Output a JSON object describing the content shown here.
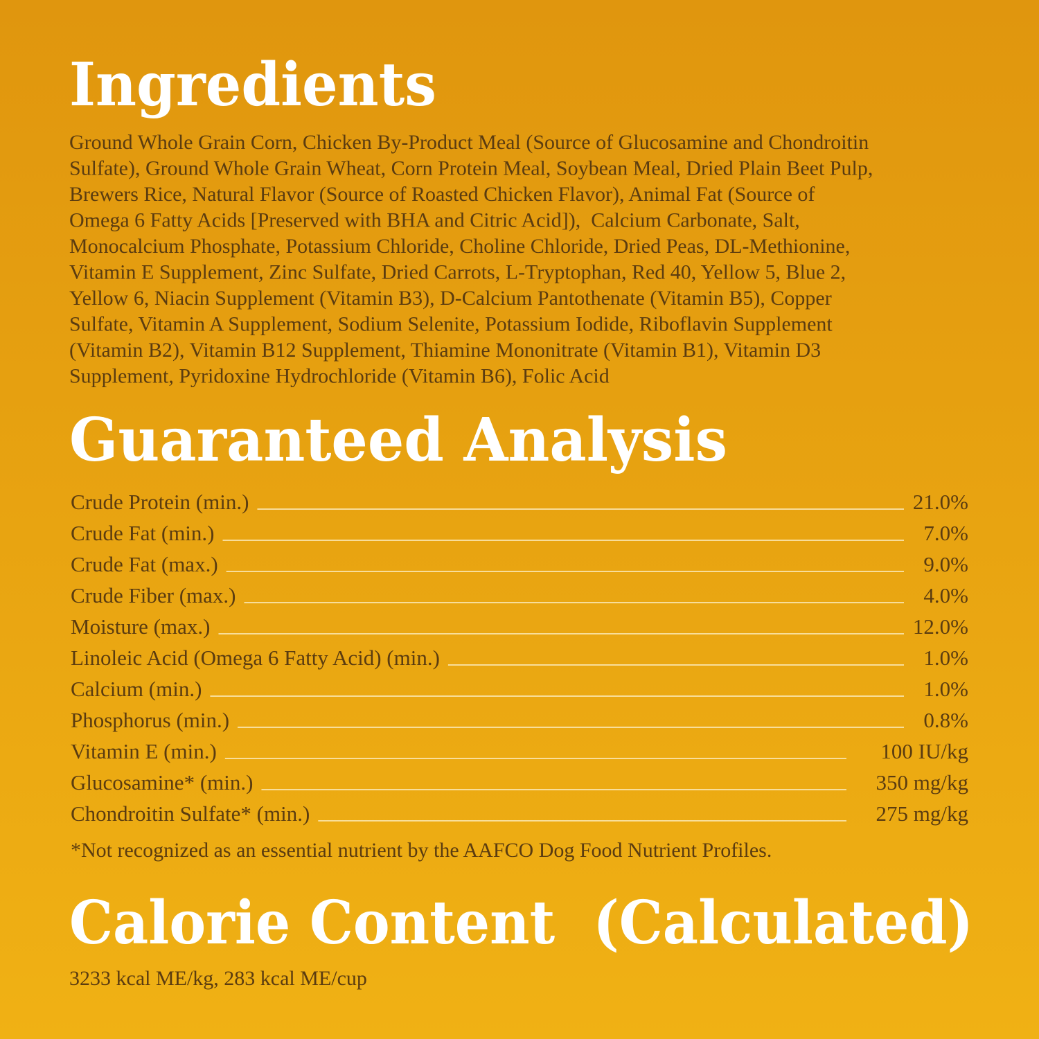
{
  "ingredients": {
    "title": "Ingredients",
    "lines": [
      "Ground Whole Grain Corn, Chicken By-Product Meal (Source of Glucosamine and Chondroitin",
      "Sulfate), Ground Whole Grain Wheat, Corn Protein Meal, Soybean Meal, Dried Plain Beet Pulp,",
      "Brewers Rice, Natural Flavor (Source of Roasted Chicken Flavor), Animal Fat (Source of",
      "Omega 6 Fatty Acids [Preserved with BHA and Citric Acid]),  Calcium Carbonate, Salt,",
      "Monocalcium Phosphate, Potassium Chloride, Choline Chloride, Dried Peas, DL-Methionine,",
      "Vitamin E Supplement, Zinc Sulfate, Dried Carrots, L-Tryptophan, Red 40, Yellow 5, Blue 2,",
      "Yellow 6, Niacin Supplement (Vitamin B3), D-Calcium Pantothenate (Vitamin B5), Copper",
      "Sulfate, Vitamin A Supplement, Sodium Selenite, Potassium Iodide, Riboflavin Supplement",
      "(Vitamin B2), Vitamin B12 Supplement, Thiamine Mononitrate (Vitamin B1), Vitamin D3",
      "Supplement, Pyridoxine Hydrochloride (Vitamin B6), Folic Acid"
    ]
  },
  "guaranteed_analysis": {
    "title": "Guaranteed Analysis",
    "rows": [
      {
        "label": "Crude Protein (min.)",
        "value": "21.0%"
      },
      {
        "label": "Crude Fat (min.)",
        "value": "7.0%"
      },
      {
        "label": "Crude Fat (max.)",
        "value": "9.0%"
      },
      {
        "label": "Crude Fiber (max.)",
        "value": "4.0%"
      },
      {
        "label": "Moisture (max.)",
        "value": "12.0%"
      },
      {
        "label": "Linoleic Acid (Omega 6 Fatty Acid) (min.)",
        "value": "1.0%"
      },
      {
        "label": "Calcium (min.)",
        "value": "1.0%"
      },
      {
        "label": "Phosphorus (min.)",
        "value": "0.8%"
      },
      {
        "label": "Vitamin E (min.)",
        "value": "100 IU/kg"
      },
      {
        "label": "Glucosamine* (min.)",
        "value": "350 mg/kg"
      },
      {
        "label": "Chondroitin Sulfate* (min.)",
        "value": "275 mg/kg"
      }
    ],
    "footnote": "*Not recognized as an essential nutrient by the AAFCO Dog Food Nutrient Profiles."
  },
  "calorie_content": {
    "title": "Calorie Content  (Calculated)",
    "text": "3233 kcal ME/kg, 283 kcal ME/cup"
  }
}
